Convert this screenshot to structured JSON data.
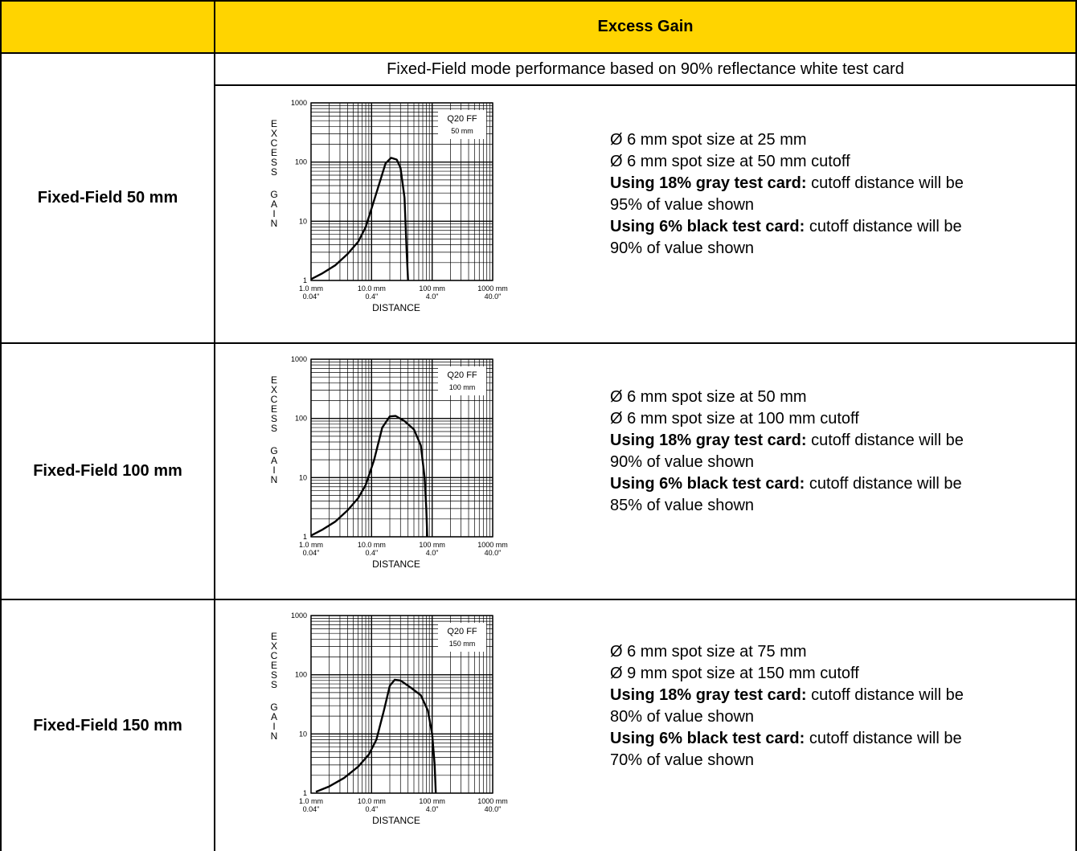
{
  "header": {
    "title": "Excess Gain"
  },
  "subtitle": "Fixed-Field mode performance based on 90% reflectance white test card",
  "colors": {
    "header_bg": "#FFD400",
    "border": "#000000"
  },
  "rows": [
    {
      "label": "Fixed-Field 50 mm",
      "lines": [
        {
          "text": "Ø 6 mm spot size at 25 mm"
        },
        {
          "text": "Ø 6 mm spot size at 50 mm cutoff"
        },
        {
          "bold": "Using 18% gray test card:",
          "text": " cutoff distance will be"
        },
        {
          "text": "95% of value shown"
        },
        {
          "bold": "Using 6% black test card:",
          "text": " cutoff distance will be"
        },
        {
          "text": "90% of value shown"
        }
      ]
    },
    {
      "label": "Fixed-Field 100 mm",
      "lines": [
        {
          "text": "Ø 6 mm spot size at 50 mm"
        },
        {
          "text": "Ø 6 mm spot size at 100 mm cutoff"
        },
        {
          "bold": "Using 18% gray test card:",
          "text": " cutoff distance will be"
        },
        {
          "text": "90% of value shown"
        },
        {
          "bold": "Using 6% black test card:",
          "text": " cutoff distance will be"
        },
        {
          "text": "85% of value shown"
        }
      ]
    },
    {
      "label": "Fixed-Field 150 mm",
      "lines": [
        {
          "text": "Ø 6 mm spot size at 75 mm"
        },
        {
          "text": "Ø 9 mm spot size at 150 mm cutoff"
        },
        {
          "bold": "Using 18% gray test card:",
          "text": " cutoff distance will be"
        },
        {
          "text": "80% of value shown"
        },
        {
          "bold": "Using 6% black test card:",
          "text": " cutoff distance will be"
        },
        {
          "text": "70% of value shown"
        }
      ]
    }
  ],
  "chart_data": [
    {
      "type": "line",
      "legend": [
        "Q20 FF",
        "50 mm"
      ],
      "ylabel": "EXCESS GAIN",
      "xlabel": "DISTANCE",
      "x_scale": "log",
      "y_scale": "log",
      "xlim": [
        1,
        1000
      ],
      "ylim": [
        1,
        1000
      ],
      "yticks": [
        "1",
        "10",
        "100",
        "1000"
      ],
      "xticks_mm": [
        "1.0 mm",
        "10.0 mm",
        "100 mm",
        "1000 mm"
      ],
      "xticks_in": [
        "0.04\"",
        "0.4\"",
        "4.0\"",
        "40.0\""
      ],
      "series": [
        {
          "x": [
            1,
            1.5,
            2.5,
            4,
            6,
            8,
            12,
            17,
            21,
            26,
            30,
            35,
            38,
            40
          ],
          "y": [
            1.05,
            1.3,
            1.8,
            2.8,
            4.5,
            8,
            30,
            95,
            118,
            110,
            80,
            25,
            3,
            1
          ]
        }
      ]
    },
    {
      "type": "line",
      "legend": [
        "Q20 FF",
        "100 mm"
      ],
      "ylabel": "EXCESS GAIN",
      "xlabel": "DISTANCE",
      "x_scale": "log",
      "y_scale": "log",
      "xlim": [
        1,
        1000
      ],
      "ylim": [
        1,
        1000
      ],
      "yticks": [
        "1",
        "10",
        "100",
        "1000"
      ],
      "xticks_mm": [
        "1.0 mm",
        "10.0 mm",
        "100 mm",
        "1000 mm"
      ],
      "xticks_in": [
        "0.04\"",
        "0.4\"",
        "4.0\"",
        "40.0\""
      ],
      "series": [
        {
          "x": [
            1,
            1.5,
            2.5,
            4,
            6,
            8,
            11,
            15,
            20,
            25,
            35,
            50,
            65,
            75,
            80,
            83
          ],
          "y": [
            1.05,
            1.3,
            1.8,
            2.8,
            4.5,
            7.5,
            20,
            70,
            108,
            110,
            90,
            65,
            35,
            10,
            3,
            1
          ]
        }
      ]
    },
    {
      "type": "line",
      "legend": [
        "Q20 FF",
        "150 mm"
      ],
      "ylabel": "EXCESS GAIN",
      "xlabel": "DISTANCE",
      "x_scale": "log",
      "y_scale": "log",
      "xlim": [
        1,
        1000
      ],
      "ylim": [
        1,
        1000
      ],
      "yticks": [
        "1",
        "10",
        "100",
        "1000"
      ],
      "xticks_mm": [
        "1.0 mm",
        "10.0 mm",
        "100 mm",
        "1000 mm"
      ],
      "xticks_in": [
        "0.04\"",
        "0.4\"",
        "4.0\"",
        "40.0\""
      ],
      "series": [
        {
          "x": [
            1.2,
            2,
            3.5,
            6,
            9,
            12,
            16,
            20,
            24,
            30,
            45,
            65,
            85,
            100,
            110,
            115
          ],
          "y": [
            1.05,
            1.3,
            1.8,
            2.8,
            4.5,
            8,
            25,
            65,
            82,
            80,
            60,
            45,
            25,
            10,
            3,
            1
          ]
        }
      ]
    }
  ]
}
